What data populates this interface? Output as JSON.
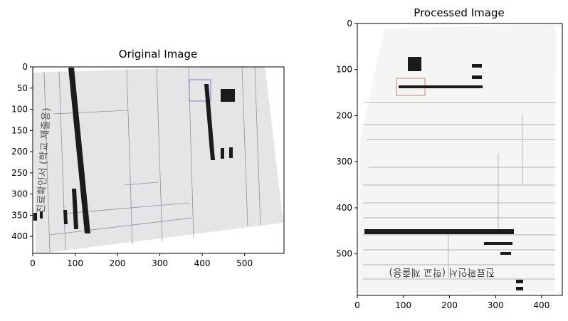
{
  "panels": [
    {
      "title": "Original Image",
      "xticks": [
        0,
        100,
        200,
        300,
        400,
        500
      ],
      "yticks": [
        0,
        50,
        100,
        150,
        200,
        250,
        300,
        350,
        400
      ],
      "xlim": [
        0,
        593
      ],
      "ylim": [
        0,
        440
      ]
    },
    {
      "title": "Processed Image",
      "xticks": [
        0,
        100,
        200,
        300,
        400
      ],
      "yticks": [
        0,
        100,
        200,
        300,
        400,
        500
      ],
      "xlim": [
        0,
        445
      ],
      "ylim": [
        0,
        590
      ]
    }
  ],
  "left_doc_text": {
    "vertical_title": "진료확인서 (학교 제출용)"
  },
  "right_doc_text": {
    "flipped_title": "진료확인서 (학교 제출용)"
  },
  "colors": {
    "doc_left": "#dfe1e4",
    "doc_right": "#f6f7f4",
    "redaction": "#1b1b1b"
  }
}
